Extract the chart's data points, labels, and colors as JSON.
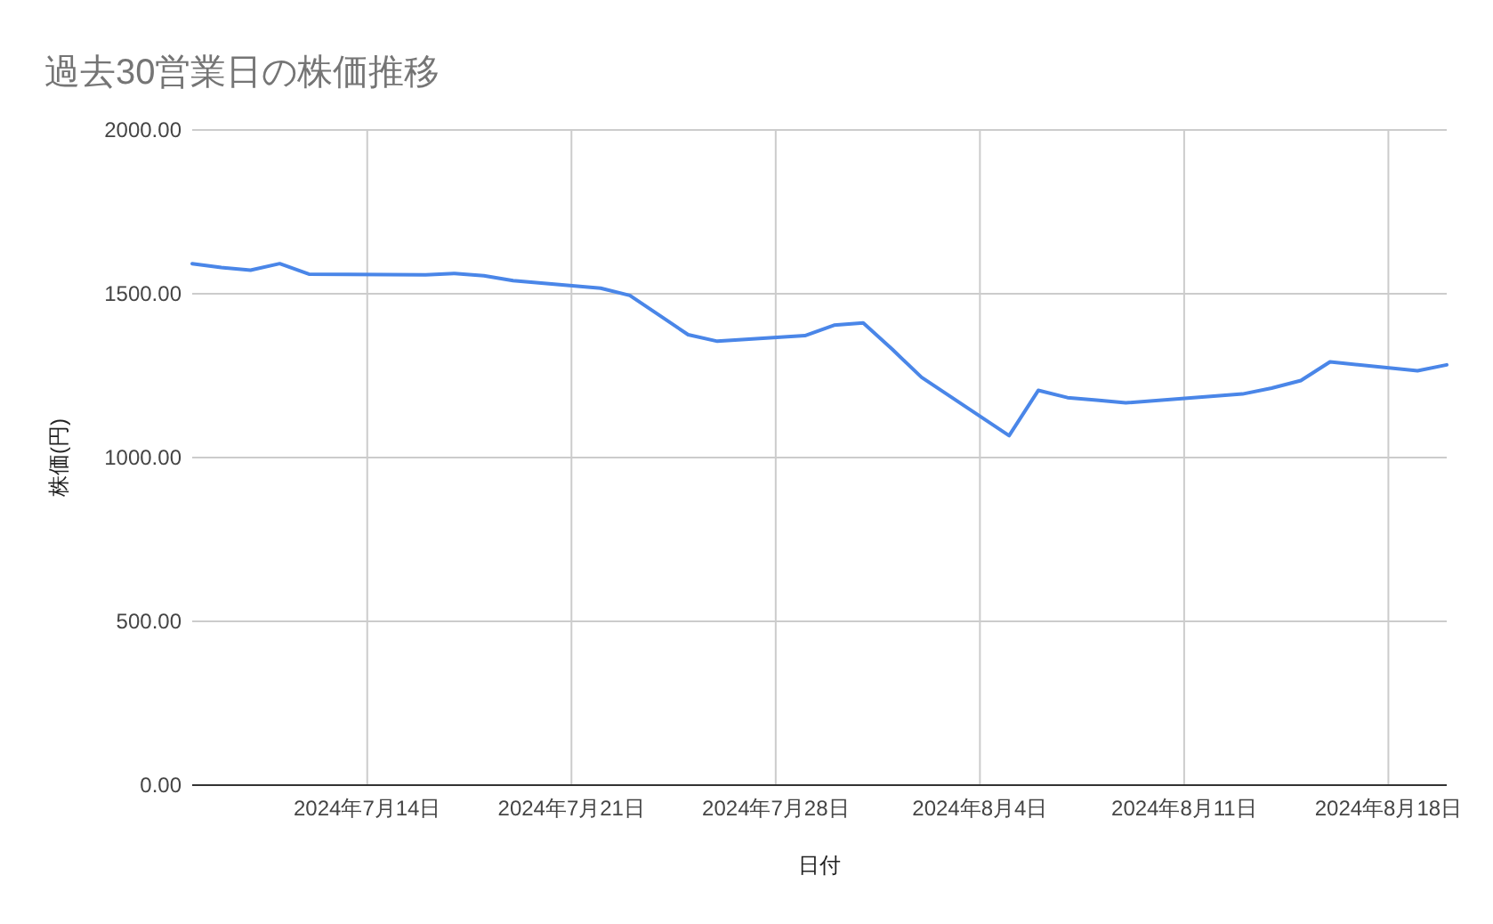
{
  "chart_data": {
    "type": "line",
    "title": "過去30営業日の株価推移",
    "xlabel": "日付",
    "ylabel": "株価(円)",
    "x": [
      "2024-07-08",
      "2024-07-09",
      "2024-07-10",
      "2024-07-11",
      "2024-07-12",
      "2024-07-16",
      "2024-07-17",
      "2024-07-18",
      "2024-07-19",
      "2024-07-22",
      "2024-07-23",
      "2024-07-24",
      "2024-07-25",
      "2024-07-26",
      "2024-07-29",
      "2024-07-30",
      "2024-07-31",
      "2024-08-01",
      "2024-08-02",
      "2024-08-05",
      "2024-08-06",
      "2024-08-07",
      "2024-08-08",
      "2024-08-09",
      "2024-08-13",
      "2024-08-14",
      "2024-08-15",
      "2024-08-16",
      "2024-08-19",
      "2024-08-20"
    ],
    "series": [
      {
        "color": "#4a86e8",
        "values": [
          1592,
          1580,
          1572,
          1592,
          1560,
          1558,
          1562,
          1555,
          1540,
          1517,
          1495,
          1435,
          1375,
          1355,
          1372,
          1404,
          1411,
          1330,
          1245,
          1067,
          1205,
          1183,
          1175,
          1167,
          1194,
          1212,
          1235,
          1292,
          1265,
          1283
        ]
      }
    ],
    "xlim": [
      "2024-07-08",
      "2024-08-20"
    ],
    "xticks": [
      {
        "value": "2024-07-14",
        "label": "2024年7月14日"
      },
      {
        "value": "2024-07-21",
        "label": "2024年7月21日"
      },
      {
        "value": "2024-07-28",
        "label": "2024年7月28日"
      },
      {
        "value": "2024-08-04",
        "label": "2024年8月4日"
      },
      {
        "value": "2024-08-11",
        "label": "2024年8月11日"
      },
      {
        "value": "2024-08-18",
        "label": "2024年8月18日"
      }
    ],
    "ylim": [
      0,
      2000
    ],
    "yticks": [
      {
        "value": 0,
        "label": "0.00"
      },
      {
        "value": 500,
        "label": "500.00"
      },
      {
        "value": 1000,
        "label": "1000.00"
      },
      {
        "value": 1500,
        "label": "1500.00"
      },
      {
        "value": 2000,
        "label": "2000.00"
      }
    ],
    "grid": true,
    "marker": "none",
    "line_style": "solid"
  }
}
